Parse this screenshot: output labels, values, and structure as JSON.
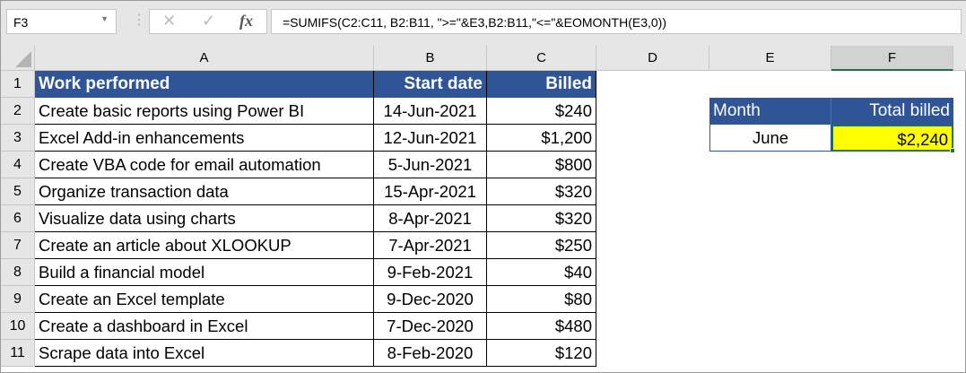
{
  "name_box": "F3",
  "formula": "=SUMIFS(C2:C11, B2:B11, \">=\"&E3,B2:B11,\"<=\"&EOMONTH(E3,0))",
  "icons": {
    "cancel": "✕",
    "enter": "✓",
    "fx": "fx"
  },
  "columns": [
    "A",
    "B",
    "C",
    "D",
    "E",
    "F"
  ],
  "rows": [
    "1",
    "2",
    "3",
    "4",
    "5",
    "6",
    "7",
    "8",
    "9",
    "10",
    "11"
  ],
  "table": {
    "headers": [
      "Work performed",
      "Start date",
      "Billed"
    ],
    "data": [
      [
        "Create basic reports using Power BI",
        "14-Jun-2021",
        "$240"
      ],
      [
        "Excel Add-in enhancements",
        "12-Jun-2021",
        "$1,200"
      ],
      [
        "Create VBA code for email automation",
        "5-Jun-2021",
        "$800"
      ],
      [
        "Organize transaction data",
        "15-Apr-2021",
        "$320"
      ],
      [
        "Visualize data using charts",
        "8-Apr-2021",
        "$320"
      ],
      [
        "Create an article about XLOOKUP",
        "7-Apr-2021",
        "$250"
      ],
      [
        "Build a financial model",
        "9-Feb-2021",
        "$40"
      ],
      [
        "Create an Excel template",
        "9-Dec-2020",
        "$80"
      ],
      [
        "Create a dashboard in Excel",
        "7-Dec-2020",
        "$480"
      ],
      [
        "Scrape data into Excel",
        "8-Feb-2020",
        "$120"
      ]
    ]
  },
  "summary": {
    "month_header": "Month",
    "total_header": "Total billed",
    "month": "June",
    "total": "$2,240"
  },
  "colors": {
    "header_bg": "#2f5597",
    "highlight": "#ffff00",
    "selection": "#217346"
  }
}
